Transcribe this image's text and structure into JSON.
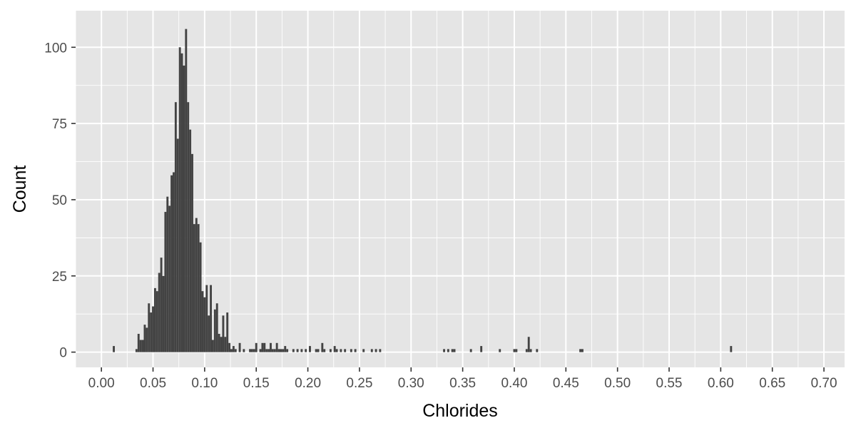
{
  "chart_data": {
    "type": "bar",
    "subtype": "histogram",
    "title": "",
    "xlabel": "Chlorides",
    "ylabel": "Count",
    "xlim": [
      -0.025,
      0.72
    ],
    "ylim": [
      -5,
      112
    ],
    "x_ticks": [
      0.0,
      0.05,
      0.1,
      0.15,
      0.2,
      0.25,
      0.3,
      0.35,
      0.4,
      0.45,
      0.5,
      0.55,
      0.6,
      0.65,
      0.7
    ],
    "x_tick_labels": [
      "0.00",
      "0.05",
      "0.10",
      "0.15",
      "0.20",
      "0.25",
      "0.30",
      "0.35",
      "0.40",
      "0.45",
      "0.50",
      "0.55",
      "0.60",
      "0.65",
      "0.70"
    ],
    "y_ticks": [
      0,
      25,
      50,
      75,
      100
    ],
    "y_tick_labels": [
      "0",
      "25",
      "50",
      "75",
      "100"
    ],
    "bin_width": 0.002,
    "grid": true,
    "colors": {
      "bar": "#434343",
      "panel": "#e5e5e5",
      "grid": "#ffffff"
    },
    "bins": [
      [
        0.012,
        2
      ],
      [
        0.034,
        1
      ],
      [
        0.036,
        6
      ],
      [
        0.038,
        4
      ],
      [
        0.04,
        4
      ],
      [
        0.042,
        9
      ],
      [
        0.044,
        8
      ],
      [
        0.046,
        16
      ],
      [
        0.048,
        13
      ],
      [
        0.05,
        15
      ],
      [
        0.052,
        21
      ],
      [
        0.054,
        20
      ],
      [
        0.056,
        26
      ],
      [
        0.058,
        31
      ],
      [
        0.06,
        25
      ],
      [
        0.062,
        46
      ],
      [
        0.064,
        51
      ],
      [
        0.066,
        48
      ],
      [
        0.068,
        58
      ],
      [
        0.07,
        59
      ],
      [
        0.072,
        82
      ],
      [
        0.074,
        70
      ],
      [
        0.076,
        100
      ],
      [
        0.078,
        98
      ],
      [
        0.08,
        94
      ],
      [
        0.082,
        106
      ],
      [
        0.084,
        82
      ],
      [
        0.086,
        73
      ],
      [
        0.088,
        65
      ],
      [
        0.09,
        42
      ],
      [
        0.092,
        44
      ],
      [
        0.094,
        42
      ],
      [
        0.096,
        36
      ],
      [
        0.098,
        20
      ],
      [
        0.1,
        18
      ],
      [
        0.102,
        22
      ],
      [
        0.104,
        12
      ],
      [
        0.106,
        22
      ],
      [
        0.108,
        4
      ],
      [
        0.11,
        14
      ],
      [
        0.112,
        16
      ],
      [
        0.114,
        6
      ],
      [
        0.116,
        5
      ],
      [
        0.118,
        12
      ],
      [
        0.12,
        5
      ],
      [
        0.122,
        13
      ],
      [
        0.124,
        3
      ],
      [
        0.126,
        1
      ],
      [
        0.128,
        2
      ],
      [
        0.13,
        1
      ],
      [
        0.134,
        3
      ],
      [
        0.138,
        1
      ],
      [
        0.144,
        1
      ],
      [
        0.146,
        1
      ],
      [
        0.148,
        1
      ],
      [
        0.15,
        3
      ],
      [
        0.154,
        1
      ],
      [
        0.156,
        3
      ],
      [
        0.158,
        3
      ],
      [
        0.16,
        1
      ],
      [
        0.162,
        1
      ],
      [
        0.164,
        3
      ],
      [
        0.166,
        1
      ],
      [
        0.168,
        1
      ],
      [
        0.17,
        3
      ],
      [
        0.172,
        1
      ],
      [
        0.174,
        1
      ],
      [
        0.176,
        1
      ],
      [
        0.178,
        2
      ],
      [
        0.18,
        1
      ],
      [
        0.186,
        1
      ],
      [
        0.19,
        1
      ],
      [
        0.194,
        1
      ],
      [
        0.198,
        1
      ],
      [
        0.202,
        2
      ],
      [
        0.208,
        1
      ],
      [
        0.21,
        1
      ],
      [
        0.214,
        3
      ],
      [
        0.216,
        1
      ],
      [
        0.222,
        1
      ],
      [
        0.226,
        2
      ],
      [
        0.228,
        1
      ],
      [
        0.232,
        1
      ],
      [
        0.236,
        1
      ],
      [
        0.242,
        1
      ],
      [
        0.246,
        1
      ],
      [
        0.254,
        1
      ],
      [
        0.262,
        1
      ],
      [
        0.266,
        1
      ],
      [
        0.27,
        1
      ],
      [
        0.332,
        1
      ],
      [
        0.336,
        1
      ],
      [
        0.34,
        1
      ],
      [
        0.342,
        1
      ],
      [
        0.358,
        1
      ],
      [
        0.368,
        2
      ],
      [
        0.386,
        1
      ],
      [
        0.4,
        1
      ],
      [
        0.402,
        1
      ],
      [
        0.412,
        1
      ],
      [
        0.414,
        5
      ],
      [
        0.416,
        1
      ],
      [
        0.422,
        1
      ],
      [
        0.464,
        1
      ],
      [
        0.466,
        1
      ],
      [
        0.61,
        2
      ]
    ]
  }
}
